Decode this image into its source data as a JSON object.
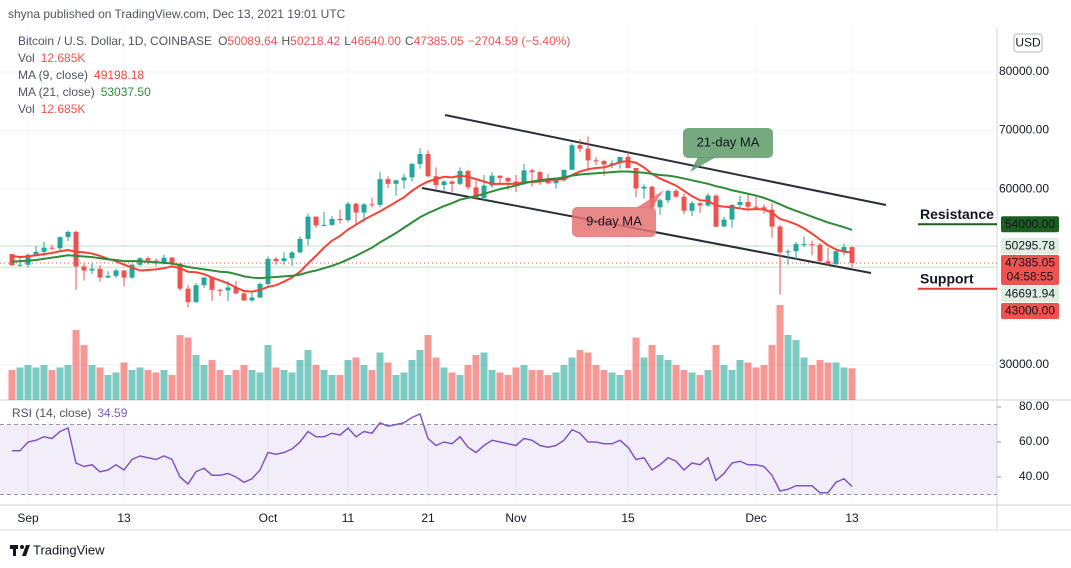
{
  "header": {
    "byline": "shyna published on TradingView.com, Dec 13, 2021 19:01 UTC"
  },
  "footer": {
    "brand": "TradingView"
  },
  "chart_data": {
    "type": "candlestick",
    "currency": "USD",
    "legend": {
      "symbol": "Bitcoin / U.S. Dollar, 1D, COINBASE",
      "open_label": "O",
      "open": "50089.64",
      "high_label": "H",
      "high": "50218.42",
      "low_label": "L",
      "low": "46640.00",
      "close_label": "C",
      "close": "47385.05",
      "change": "−2704.59 (−5.40%)"
    },
    "up_color": "#26a69a",
    "down_color": "#ef5350",
    "grid": true,
    "ylim": [
      24000,
      87500
    ],
    "yticks": [
      {
        "value": 80000,
        "label": "80000.00"
      },
      {
        "value": 70000,
        "label": "70000.00"
      },
      {
        "value": 60000,
        "label": "60000.00"
      },
      {
        "value": 30000,
        "label": "30000.00"
      }
    ],
    "categories": [
      null,
      null,
      "Sep",
      null,
      null,
      null,
      null,
      null,
      null,
      null,
      null,
      null,
      null,
      null,
      "13",
      null,
      null,
      null,
      null,
      null,
      null,
      null,
      null,
      null,
      null,
      null,
      null,
      null,
      null,
      null,
      null,
      null,
      "Oct",
      null,
      null,
      null,
      null,
      null,
      null,
      null,
      null,
      null,
      "11",
      null,
      null,
      null,
      null,
      null,
      null,
      null,
      null,
      null,
      "21",
      null,
      null,
      null,
      null,
      null,
      null,
      null,
      null,
      null,
      null,
      "Nov",
      null,
      null,
      null,
      null,
      null,
      null,
      null,
      null,
      null,
      null,
      null,
      null,
      null,
      "15",
      null,
      null,
      null,
      null,
      null,
      null,
      null,
      null,
      null,
      null,
      null,
      null,
      null,
      null,
      null,
      "Dec",
      null,
      null,
      null,
      null,
      null,
      null,
      null,
      null,
      null,
      null,
      null,
      "13"
    ],
    "ohlc": [
      [
        48900,
        48900,
        46900,
        47000
      ],
      [
        47000,
        48200,
        46700,
        47100
      ],
      [
        47100,
        49000,
        46600,
        48800
      ],
      [
        48800,
        50300,
        48600,
        49300
      ],
      [
        49300,
        51000,
        48500,
        50000
      ],
      [
        50000,
        50500,
        49500,
        49900
      ],
      [
        49900,
        51900,
        49500,
        51800
      ],
      [
        51800,
        52900,
        51100,
        52700
      ],
      [
        52700,
        52900,
        42800,
        46800
      ],
      [
        46800,
        47300,
        44400,
        46100
      ],
      [
        46100,
        47300,
        45500,
        46400
      ],
      [
        46400,
        47000,
        44200,
        44900
      ],
      [
        44900,
        46000,
        44800,
        45200
      ],
      [
        45200,
        46400,
        44800,
        46100
      ],
      [
        46100,
        46200,
        43400,
        44900
      ],
      [
        44900,
        47200,
        44700,
        47100
      ],
      [
        47100,
        48400,
        46800,
        48200
      ],
      [
        48200,
        48500,
        47100,
        47800
      ],
      [
        47800,
        48200,
        46800,
        47300
      ],
      [
        47300,
        48800,
        47100,
        48300
      ],
      [
        48300,
        48400,
        47000,
        47300
      ],
      [
        47300,
        47300,
        42600,
        43000
      ],
      [
        43000,
        43600,
        39800,
        40700
      ],
      [
        40700,
        44000,
        40600,
        43600
      ],
      [
        43600,
        45000,
        43100,
        44900
      ],
      [
        44900,
        45000,
        40900,
        42800
      ],
      [
        42800,
        43000,
        41700,
        42700
      ],
      [
        42700,
        44300,
        40900,
        43200
      ],
      [
        43200,
        44300,
        42100,
        42200
      ],
      [
        42200,
        42800,
        40900,
        41000
      ],
      [
        41000,
        42600,
        40800,
        41500
      ],
      [
        41500,
        44100,
        41400,
        43800
      ],
      [
        43800,
        48500,
        43300,
        48100
      ],
      [
        48100,
        48400,
        47100,
        47700
      ],
      [
        47700,
        49200,
        47100,
        48200
      ],
      [
        48200,
        49500,
        46900,
        49200
      ],
      [
        49200,
        51900,
        49000,
        51500
      ],
      [
        51500,
        55800,
        50400,
        55300
      ],
      [
        55300,
        55300,
        53400,
        53800
      ],
      [
        53800,
        56100,
        53700,
        53900
      ],
      [
        53900,
        55400,
        53700,
        54900
      ],
      [
        54900,
        56500,
        54100,
        54700
      ],
      [
        54700,
        57800,
        54400,
        57500
      ],
      [
        57500,
        57700,
        53900,
        56000
      ],
      [
        56000,
        57600,
        54300,
        57400
      ],
      [
        57400,
        58500,
        56900,
        57300
      ],
      [
        57300,
        62900,
        56900,
        61700
      ],
      [
        61700,
        62200,
        60200,
        60900
      ],
      [
        60900,
        61600,
        58900,
        61500
      ],
      [
        61500,
        62600,
        60100,
        62000
      ],
      [
        62000,
        64500,
        61300,
        64300
      ],
      [
        64300,
        67000,
        63500,
        66000
      ],
      [
        66000,
        66600,
        62000,
        62200
      ],
      [
        62200,
        63700,
        60000,
        60700
      ],
      [
        60700,
        61500,
        59700,
        61300
      ],
      [
        61300,
        61500,
        59500,
        60900
      ],
      [
        60900,
        63700,
        60700,
        63100
      ],
      [
        63100,
        63300,
        59900,
        60300
      ],
      [
        60300,
        61400,
        58100,
        58500
      ],
      [
        58500,
        62400,
        57900,
        60600
      ],
      [
        60600,
        62900,
        60200,
        62300
      ],
      [
        62300,
        62300,
        60700,
        61900
      ],
      [
        61900,
        62000,
        59900,
        61300
      ],
      [
        61300,
        62400,
        59500,
        61000
      ],
      [
        61000,
        64300,
        60700,
        63200
      ],
      [
        63200,
        63500,
        60400,
        62900
      ],
      [
        62900,
        63100,
        60700,
        61400
      ],
      [
        61400,
        62600,
        60800,
        61000
      ],
      [
        61000,
        61600,
        60100,
        61500
      ],
      [
        61500,
        63300,
        61300,
        63300
      ],
      [
        63300,
        67800,
        63300,
        67500
      ],
      [
        67500,
        68500,
        66300,
        66900
      ],
      [
        66900,
        69000,
        63000,
        64900
      ],
      [
        64900,
        65500,
        64100,
        64800
      ],
      [
        64800,
        65000,
        62300,
        64200
      ],
      [
        64200,
        64900,
        63600,
        64400
      ],
      [
        64400,
        65500,
        63500,
        65500
      ],
      [
        65500,
        66300,
        63500,
        63600
      ],
      [
        63600,
        63600,
        58600,
        60100
      ],
      [
        60100,
        60800,
        58400,
        60400
      ],
      [
        60400,
        60600,
        56500,
        56900
      ],
      [
        56900,
        58400,
        55600,
        58100
      ],
      [
        58100,
        59900,
        57600,
        59700
      ],
      [
        59700,
        60000,
        58500,
        58700
      ],
      [
        58700,
        59300,
        55700,
        56300
      ],
      [
        56300,
        58000,
        55400,
        57600
      ],
      [
        57600,
        57800,
        55900,
        57200
      ],
      [
        57200,
        59300,
        57000,
        58900
      ],
      [
        58900,
        59100,
        53500,
        53600
      ],
      [
        53600,
        55300,
        53600,
        54800
      ],
      [
        54800,
        57400,
        53400,
        57300
      ],
      [
        57300,
        58900,
        56700,
        57800
      ],
      [
        57800,
        59200,
        56600,
        57000
      ],
      [
        57000,
        59100,
        56500,
        56900
      ],
      [
        56900,
        57400,
        55800,
        56500
      ],
      [
        56500,
        57600,
        51700,
        53600
      ],
      [
        53600,
        53900,
        42000,
        49200
      ],
      [
        49200,
        49700,
        47100,
        49400
      ],
      [
        49400,
        51000,
        47900,
        50600
      ],
      [
        50600,
        51900,
        50100,
        50600
      ],
      [
        50600,
        51200,
        48700,
        50500
      ],
      [
        50500,
        50800,
        47400,
        47700
      ],
      [
        47700,
        50000,
        46900,
        47200
      ],
      [
        47200,
        49500,
        46800,
        49400
      ],
      [
        49400,
        50700,
        48700,
        50100
      ],
      [
        50089.64,
        50218.42,
        46640,
        47385.05
      ]
    ],
    "volume": {
      "name": "Vol",
      "last": "12.685K",
      "values": [
        12,
        13,
        14,
        13,
        14,
        12,
        13,
        14,
        28,
        22,
        14,
        13,
        10,
        11,
        15,
        12,
        13,
        12,
        11,
        12,
        10,
        26,
        25,
        18,
        14,
        16,
        12,
        10,
        12,
        14,
        12,
        11,
        22,
        13,
        12,
        11,
        16,
        20,
        14,
        12,
        10,
        10,
        16,
        17,
        14,
        12,
        19,
        15,
        10,
        11,
        16,
        20,
        26,
        17,
        13,
        11,
        10,
        14,
        18,
        19,
        12,
        11,
        10,
        13,
        14,
        12,
        12,
        10,
        11,
        14,
        17,
        20,
        19,
        14,
        12,
        11,
        10,
        12,
        25,
        17,
        22,
        18,
        16,
        14,
        12,
        11,
        10,
        12,
        22,
        14,
        12,
        16,
        15,
        13,
        14,
        22,
        38,
        26,
        24,
        17,
        14,
        16,
        15,
        15,
        13,
        12.685
      ]
    },
    "series": [
      {
        "name": "MA (9, close)",
        "last": "49198.18",
        "color": "#f44336",
        "values": [
          48600,
          48400,
          48500,
          48700,
          48900,
          49100,
          49400,
          49600,
          49300,
          49200,
          49000,
          48600,
          48100,
          47700,
          47100,
          46600,
          46100,
          46200,
          46300,
          46500,
          46800,
          46500,
          45900,
          45800,
          45500,
          44900,
          44400,
          43900,
          43200,
          42600,
          42500,
          42800,
          43300,
          43600,
          44200,
          44900,
          45900,
          47300,
          48600,
          50000,
          51200,
          52000,
          53100,
          53900,
          54800,
          55500,
          56200,
          57000,
          57800,
          58600,
          59700,
          60600,
          61300,
          61700,
          62100,
          62000,
          62300,
          62100,
          61700,
          61300,
          60900,
          60900,
          60900,
          60900,
          61200,
          61200,
          61300,
          61500,
          61600,
          61700,
          62400,
          63000,
          63400,
          63600,
          63700,
          64100,
          64600,
          64800,
          64500,
          63700,
          62600,
          61800,
          61200,
          60600,
          59700,
          58800,
          58100,
          58000,
          57200,
          57000,
          56900,
          56700,
          56500,
          56600,
          56500,
          56000,
          54900,
          54500,
          54000,
          53300,
          52400,
          51400,
          50400,
          49700,
          49300,
          49198.18
        ]
      },
      {
        "name": "MA (21, close)",
        "last": "53037.50",
        "color": "#2e8b3a",
        "values": [
          47600,
          47700,
          47800,
          47900,
          48100,
          48300,
          48500,
          48700,
          48600,
          48500,
          48400,
          48200,
          48000,
          47900,
          47700,
          47700,
          47700,
          47600,
          47500,
          47400,
          47300,
          47000,
          46700,
          46500,
          46300,
          46100,
          45900,
          45800,
          45500,
          45100,
          44900,
          44800,
          44900,
          45000,
          45100,
          45200,
          45400,
          45800,
          46100,
          46500,
          46900,
          47400,
          48000,
          48600,
          49300,
          50000,
          50900,
          51700,
          52500,
          53400,
          54300,
          55200,
          55900,
          56500,
          57100,
          57600,
          58200,
          58500,
          58800,
          59200,
          59600,
          60000,
          60300,
          60600,
          61000,
          61300,
          61500,
          61700,
          61800,
          62000,
          62300,
          62500,
          62600,
          62700,
          62800,
          62900,
          63000,
          63000,
          62900,
          62800,
          62600,
          62400,
          62300,
          62100,
          61800,
          61500,
          61200,
          60900,
          60500,
          60200,
          59800,
          59500,
          59200,
          58900,
          58500,
          58000,
          57400,
          56800,
          56300,
          55800,
          55300,
          54800,
          54300,
          53900,
          53500,
          53037.5
        ]
      }
    ],
    "price_labels": [
      {
        "value": 54000,
        "label": "54000.00",
        "color": "#1b5e20",
        "text_color": "#ffffff",
        "line": false
      },
      {
        "value": 50295.78,
        "label": "50295.78",
        "color": "#dcefe0",
        "text_color": "#131722",
        "line": true
      },
      {
        "value": 47385.05,
        "label": "47385.05",
        "countdown": "04:58:55",
        "color": "#ef5350",
        "text_color": "#ffffff",
        "line": true
      },
      {
        "value": 46691.94,
        "label": "46691.94",
        "color": "#dcefe0",
        "text_color": "#131722",
        "line": true
      },
      {
        "value": 43000,
        "label": "43000.00",
        "color": "#ef5350",
        "text_color": "#ffffff",
        "line": false
      }
    ],
    "levels": [
      {
        "label": "Resistance",
        "value": 54000,
        "color": "#1b5e20",
        "text_color": "#d32f2f"
      },
      {
        "label": "Support",
        "value": 43000,
        "color": "#e53935",
        "text_color": "#2e7d32"
      }
    ],
    "annotations": [
      {
        "text": "21-day MA",
        "color": "#5e9b67"
      },
      {
        "text": "9-day MA",
        "color": "#e57373"
      }
    ],
    "rsi": {
      "name": "RSI (14, close)",
      "last": "34.59",
      "color": "#7e57c2",
      "ylim": [
        24,
        84
      ],
      "yticks": [
        {
          "value": 80,
          "label": "80.00"
        },
        {
          "value": 60,
          "label": "60.00"
        },
        {
          "value": 40,
          "label": "40.00"
        }
      ],
      "bands": [
        70,
        30
      ],
      "values": [
        55,
        55,
        60,
        61,
        63,
        62,
        66,
        68,
        48,
        46,
        47,
        43,
        44,
        47,
        44,
        50,
        52,
        51,
        50,
        52,
        50,
        40,
        36,
        43,
        45,
        41,
        41,
        42,
        40,
        37,
        39,
        44,
        54,
        53,
        54,
        56,
        60,
        66,
        63,
        63,
        65,
        64,
        68,
        63,
        66,
        65,
        71,
        69,
        70,
        71,
        74,
        76,
        62,
        58,
        60,
        59,
        63,
        57,
        54,
        58,
        61,
        60,
        59,
        58,
        62,
        61,
        58,
        57,
        58,
        61,
        67,
        65,
        60,
        60,
        59,
        59,
        61,
        57,
        50,
        51,
        44,
        47,
        51,
        49,
        44,
        48,
        47,
        51,
        38,
        42,
        48,
        49,
        47,
        47,
        46,
        41,
        32,
        33,
        35,
        35,
        35,
        31,
        31,
        37,
        39,
        34.59
      ]
    }
  }
}
